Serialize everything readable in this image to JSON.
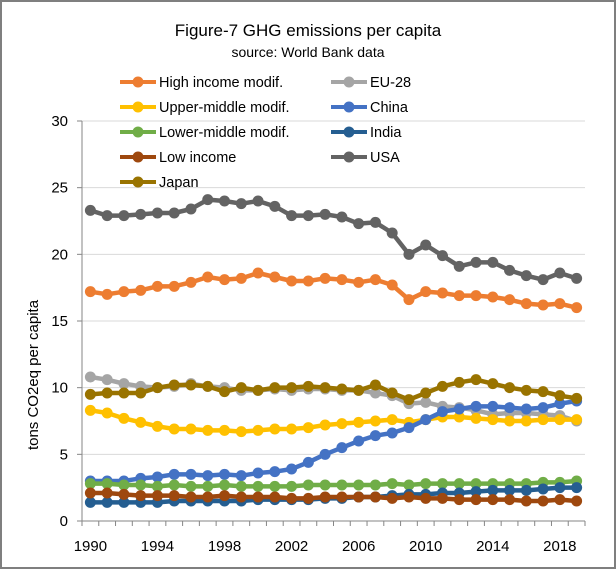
{
  "chart_data": {
    "type": "line",
    "title": "Figure-7  GHG emissions per capita",
    "subtitle": "source: World Bank data",
    "xlabel": "",
    "ylabel": "tons CO2eq per capita",
    "ylim": [
      0,
      30
    ],
    "yticks": [
      0,
      5,
      10,
      15,
      20,
      25,
      30
    ],
    "grid": true,
    "legend_position": "top",
    "x": [
      1990,
      1991,
      1992,
      1993,
      1994,
      1995,
      1996,
      1997,
      1998,
      1999,
      2000,
      2001,
      2002,
      2003,
      2004,
      2005,
      2006,
      2007,
      2008,
      2009,
      2010,
      2011,
      2012,
      2013,
      2014,
      2015,
      2016,
      2017,
      2018,
      2019
    ],
    "xtick_labels": [
      "1990",
      "1994",
      "1998",
      "2002",
      "2006",
      "2010",
      "2014",
      "2018"
    ],
    "series": [
      {
        "name": "High income modif.",
        "color": "#ed7d31",
        "values": [
          17.2,
          17.0,
          17.2,
          17.3,
          17.6,
          17.6,
          17.9,
          18.3,
          18.1,
          18.2,
          18.6,
          18.3,
          18.0,
          18.0,
          18.2,
          18.1,
          17.9,
          18.1,
          17.7,
          16.6,
          17.2,
          17.1,
          16.9,
          16.9,
          16.8,
          16.6,
          16.3,
          16.2,
          16.3,
          16.0
        ]
      },
      {
        "name": "EU-28",
        "color": "#a5a5a5",
        "values": [
          10.8,
          10.6,
          10.3,
          10.1,
          10.0,
          10.1,
          10.3,
          10.1,
          10.0,
          9.8,
          9.8,
          9.9,
          9.8,
          9.9,
          9.9,
          9.8,
          9.8,
          9.6,
          9.4,
          8.8,
          8.9,
          8.6,
          8.5,
          8.3,
          8.0,
          8.1,
          8.1,
          8.0,
          7.9,
          7.5
        ]
      },
      {
        "name": "Upper-middle modif.",
        "color": "#ffc000",
        "values": [
          8.3,
          8.1,
          7.7,
          7.4,
          7.1,
          6.9,
          6.9,
          6.8,
          6.8,
          6.7,
          6.8,
          6.9,
          6.9,
          7.0,
          7.2,
          7.3,
          7.4,
          7.5,
          7.6,
          7.4,
          7.6,
          7.8,
          7.8,
          7.7,
          7.6,
          7.5,
          7.5,
          7.6,
          7.6,
          7.6
        ]
      },
      {
        "name": "China",
        "color": "#4472c4",
        "values": [
          3.0,
          3.0,
          3.0,
          3.2,
          3.3,
          3.5,
          3.5,
          3.4,
          3.5,
          3.4,
          3.6,
          3.7,
          3.9,
          4.4,
          5.0,
          5.5,
          6.0,
          6.4,
          6.6,
          7.0,
          7.6,
          8.2,
          8.4,
          8.6,
          8.6,
          8.5,
          8.4,
          8.5,
          8.8,
          9.0
        ]
      },
      {
        "name": "Lower-middle modif.",
        "color": "#70ad47",
        "values": [
          2.8,
          2.8,
          2.7,
          2.7,
          2.6,
          2.7,
          2.6,
          2.6,
          2.7,
          2.6,
          2.6,
          2.6,
          2.6,
          2.7,
          2.7,
          2.7,
          2.7,
          2.7,
          2.8,
          2.7,
          2.8,
          2.8,
          2.8,
          2.8,
          2.8,
          2.8,
          2.8,
          2.9,
          2.9,
          3.0
        ]
      },
      {
        "name": "India",
        "color": "#255e91",
        "values": [
          1.4,
          1.4,
          1.4,
          1.4,
          1.4,
          1.5,
          1.5,
          1.5,
          1.5,
          1.5,
          1.6,
          1.6,
          1.6,
          1.6,
          1.7,
          1.7,
          1.8,
          1.8,
          1.9,
          2.0,
          2.0,
          2.1,
          2.1,
          2.2,
          2.3,
          2.3,
          2.3,
          2.4,
          2.5,
          2.5
        ]
      },
      {
        "name": "Low income",
        "color": "#9e480e",
        "values": [
          2.1,
          2.1,
          2.0,
          1.9,
          1.9,
          1.9,
          1.8,
          1.8,
          1.9,
          1.8,
          1.8,
          1.8,
          1.7,
          1.7,
          1.8,
          1.8,
          1.8,
          1.8,
          1.7,
          1.8,
          1.7,
          1.7,
          1.6,
          1.6,
          1.6,
          1.6,
          1.5,
          1.5,
          1.6,
          1.5
        ]
      },
      {
        "name": "USA",
        "color": "#636363",
        "values": [
          23.3,
          22.9,
          22.9,
          23.0,
          23.1,
          23.1,
          23.4,
          24.1,
          24.0,
          23.8,
          24.0,
          23.6,
          22.9,
          22.9,
          23.0,
          22.8,
          22.3,
          22.4,
          21.6,
          20.0,
          20.7,
          19.9,
          19.1,
          19.4,
          19.4,
          18.8,
          18.4,
          18.1,
          18.6,
          18.2
        ]
      },
      {
        "name": "Japan",
        "color": "#997300",
        "values": [
          9.5,
          9.6,
          9.6,
          9.6,
          10.0,
          10.2,
          10.2,
          10.1,
          9.7,
          10.0,
          9.8,
          10.0,
          10.0,
          10.1,
          10.0,
          9.9,
          9.8,
          10.2,
          9.6,
          9.1,
          9.6,
          10.1,
          10.4,
          10.6,
          10.3,
          10.0,
          9.8,
          9.7,
          9.4,
          9.2
        ]
      }
    ],
    "legend_order": [
      0,
      1,
      2,
      3,
      4,
      5,
      6,
      7,
      8
    ]
  }
}
